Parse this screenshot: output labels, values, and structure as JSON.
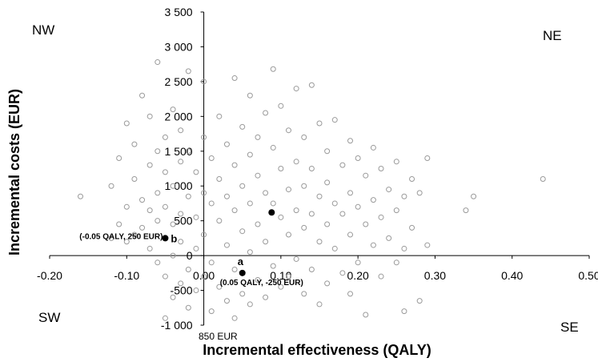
{
  "chart_data": {
    "type": "scatter",
    "xlabel": "Incremental effectiveness (QALY)",
    "ylabel": "Incremental costs (EUR)",
    "xlim": [
      -0.2,
      0.5
    ],
    "ylim": [
      -1000,
      3500
    ],
    "x_ticks": [
      "-0.20",
      "-0.10",
      "0.00",
      "0.10",
      "0.20",
      "0.30",
      "0.40",
      "0.50"
    ],
    "y_ticks": [
      "-1 000",
      "-500",
      "0",
      "500",
      "1 000",
      "1 500",
      "2 000",
      "2 500",
      "3 000",
      "3 500"
    ],
    "x_tick_values": [
      -0.2,
      -0.1,
      0.0,
      0.1,
      0.2,
      0.3,
      0.4,
      0.5
    ],
    "y_tick_values": [
      -1000,
      -500,
      0,
      500,
      1000,
      1500,
      2000,
      2500,
      3000,
      3500
    ],
    "quadrants": {
      "nw": "NW",
      "ne": "NE",
      "sw": "SW",
      "se": "SE"
    },
    "axis_note": "850 EUR",
    "scatter_color": "#9a9a9a",
    "highlight_points": [
      {
        "x": 0.088,
        "y": 620,
        "label": ""
      },
      {
        "x": -0.05,
        "y": 250,
        "label": "b",
        "annotation": "(-0.05 QALY, 250 EUR)"
      },
      {
        "x": 0.05,
        "y": -250,
        "label": "a",
        "annotation": "(0.05 QALY, -250 EUR)"
      }
    ],
    "series": [
      {
        "values": [
          [
            -0.16,
            850
          ],
          [
            -0.12,
            250
          ],
          [
            -0.12,
            1000
          ],
          [
            -0.11,
            1400
          ],
          [
            -0.11,
            450
          ],
          [
            -0.1,
            1900
          ],
          [
            -0.1,
            700
          ],
          [
            -0.1,
            200
          ],
          [
            -0.09,
            1600
          ],
          [
            -0.09,
            1100
          ],
          [
            -0.09,
            300
          ],
          [
            -0.08,
            2300
          ],
          [
            -0.08,
            800
          ],
          [
            -0.08,
            400
          ],
          [
            -0.07,
            2000
          ],
          [
            -0.07,
            1300
          ],
          [
            -0.07,
            650
          ],
          [
            -0.07,
            100
          ],
          [
            -0.06,
            2780
          ],
          [
            -0.06,
            1500
          ],
          [
            -0.06,
            900
          ],
          [
            -0.06,
            500
          ],
          [
            -0.06,
            -100
          ],
          [
            -0.05,
            1700
          ],
          [
            -0.05,
            1200
          ],
          [
            -0.05,
            700
          ],
          [
            -0.05,
            -300
          ],
          [
            -0.05,
            -900
          ],
          [
            -0.04,
            2100
          ],
          [
            -0.04,
            1000
          ],
          [
            -0.04,
            450
          ],
          [
            -0.04,
            0
          ],
          [
            -0.04,
            -600
          ],
          [
            -0.03,
            1800
          ],
          [
            -0.03,
            1350
          ],
          [
            -0.03,
            600
          ],
          [
            -0.03,
            200
          ],
          [
            -0.03,
            -400
          ],
          [
            -0.02,
            2650
          ],
          [
            -0.02,
            1500
          ],
          [
            -0.02,
            850
          ],
          [
            -0.02,
            -200
          ],
          [
            -0.02,
            -750
          ],
          [
            -0.01,
            1200
          ],
          [
            -0.01,
            550
          ],
          [
            -0.01,
            100
          ],
          [
            -0.01,
            -500
          ],
          [
            0.0,
            2500
          ],
          [
            0.0,
            1700
          ],
          [
            0.0,
            900
          ],
          [
            0.0,
            300
          ],
          [
            0.0,
            -300
          ],
          [
            0.01,
            1400
          ],
          [
            0.01,
            750
          ],
          [
            0.01,
            -100
          ],
          [
            0.01,
            -800
          ],
          [
            0.02,
            2000
          ],
          [
            0.02,
            1100
          ],
          [
            0.02,
            500
          ],
          [
            0.02,
            -450
          ],
          [
            0.03,
            1600
          ],
          [
            0.03,
            850
          ],
          [
            0.03,
            150
          ],
          [
            0.03,
            -650
          ],
          [
            0.04,
            2550
          ],
          [
            0.04,
            1300
          ],
          [
            0.04,
            650
          ],
          [
            0.04,
            -200
          ],
          [
            0.04,
            -900
          ],
          [
            0.05,
            1850
          ],
          [
            0.05,
            1000
          ],
          [
            0.05,
            350
          ],
          [
            0.05,
            -550
          ],
          [
            0.06,
            2300
          ],
          [
            0.06,
            1450
          ],
          [
            0.06,
            750
          ],
          [
            0.06,
            50
          ],
          [
            0.06,
            -700
          ],
          [
            0.07,
            1700
          ],
          [
            0.07,
            1150
          ],
          [
            0.07,
            450
          ],
          [
            0.07,
            -350
          ],
          [
            0.08,
            2050
          ],
          [
            0.08,
            900
          ],
          [
            0.08,
            200
          ],
          [
            0.08,
            -600
          ],
          [
            0.09,
            2680
          ],
          [
            0.09,
            1550
          ],
          [
            0.09,
            750
          ],
          [
            0.09,
            -150
          ],
          [
            0.1,
            2150
          ],
          [
            0.1,
            1250
          ],
          [
            0.1,
            550
          ],
          [
            0.1,
            -450
          ],
          [
            0.11,
            1800
          ],
          [
            0.11,
            950
          ],
          [
            0.11,
            300
          ],
          [
            0.11,
            -300
          ],
          [
            0.12,
            2400
          ],
          [
            0.12,
            1350
          ],
          [
            0.12,
            650
          ],
          [
            0.12,
            -50
          ],
          [
            0.13,
            1700
          ],
          [
            0.13,
            1000
          ],
          [
            0.13,
            400
          ],
          [
            0.13,
            -550
          ],
          [
            0.14,
            2450
          ],
          [
            0.14,
            1250
          ],
          [
            0.14,
            600
          ],
          [
            0.14,
            -200
          ],
          [
            0.15,
            1900
          ],
          [
            0.15,
            850
          ],
          [
            0.15,
            200
          ],
          [
            0.15,
            -700
          ],
          [
            0.16,
            1500
          ],
          [
            0.16,
            1050
          ],
          [
            0.16,
            450
          ],
          [
            0.16,
            -400
          ],
          [
            0.17,
            1950
          ],
          [
            0.17,
            750
          ],
          [
            0.17,
            100
          ],
          [
            0.18,
            1300
          ],
          [
            0.18,
            600
          ],
          [
            0.18,
            -250
          ],
          [
            0.19,
            1650
          ],
          [
            0.19,
            900
          ],
          [
            0.19,
            300
          ],
          [
            0.19,
            -550
          ],
          [
            0.2,
            1400
          ],
          [
            0.2,
            700
          ],
          [
            0.2,
            -100
          ],
          [
            0.21,
            1150
          ],
          [
            0.21,
            450
          ],
          [
            0.21,
            -850
          ],
          [
            0.22,
            1550
          ],
          [
            0.22,
            800
          ],
          [
            0.22,
            150
          ],
          [
            0.23,
            1250
          ],
          [
            0.23,
            550
          ],
          [
            0.23,
            -300
          ],
          [
            0.24,
            950
          ],
          [
            0.24,
            250
          ],
          [
            0.25,
            1350
          ],
          [
            0.25,
            650
          ],
          [
            0.25,
            -100
          ],
          [
            0.26,
            850
          ],
          [
            0.26,
            100
          ],
          [
            0.26,
            -800
          ],
          [
            0.27,
            1100
          ],
          [
            0.27,
            400
          ],
          [
            0.28,
            900
          ],
          [
            0.28,
            -650
          ],
          [
            0.29,
            1400
          ],
          [
            0.29,
            150
          ],
          [
            0.34,
            650
          ],
          [
            0.35,
            850
          ],
          [
            0.44,
            1100
          ]
        ]
      }
    ]
  }
}
